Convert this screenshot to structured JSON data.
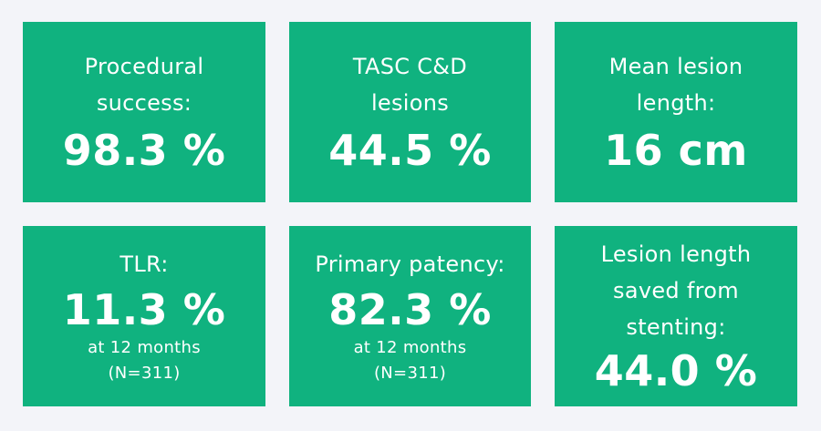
{
  "colors": {
    "background": "#f3f4f9",
    "card": "#10b27f",
    "text": "#ffffff"
  },
  "cards": [
    {
      "label_lines": [
        "Procedural",
        "success:"
      ],
      "value": "98.3 %"
    },
    {
      "label_lines": [
        "TASC C&D",
        "lesions"
      ],
      "value": "44.5 %"
    },
    {
      "label_lines": [
        "Mean lesion",
        "length:"
      ],
      "value": "16 cm"
    },
    {
      "label_lines": [
        "TLR:"
      ],
      "value": "11.3 %",
      "sub_lines": [
        "at 12 months",
        "(N=311)"
      ]
    },
    {
      "label_lines": [
        "Primary patency:"
      ],
      "value": "82.3 %",
      "sub_lines": [
        "at 12 months",
        "(N=311)"
      ]
    },
    {
      "label_lines": [
        "Lesion length",
        "saved from",
        "stenting:"
      ],
      "value": "44.0 %"
    }
  ]
}
